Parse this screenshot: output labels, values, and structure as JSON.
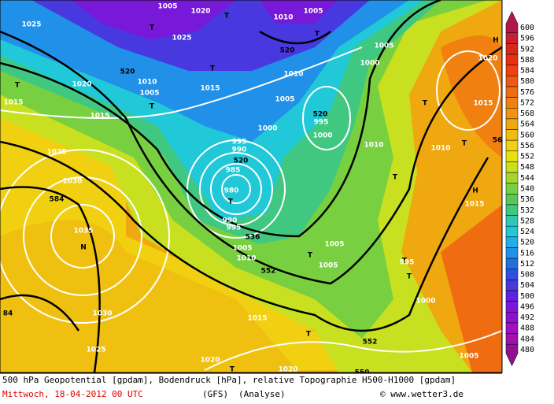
{
  "scale": {
    "labels": [
      600,
      596,
      592,
      588,
      584,
      580,
      576,
      572,
      568,
      564,
      560,
      556,
      552,
      548,
      544,
      540,
      536,
      532,
      528,
      524,
      520,
      516,
      512,
      508,
      504,
      500,
      496,
      492,
      488,
      484,
      480
    ],
    "colors": [
      "#b01848",
      "#c82030",
      "#d82818",
      "#e83010",
      "#f04010",
      "#f05818",
      "#f06c10",
      "#f08010",
      "#f09410",
      "#f0a810",
      "#f0bc10",
      "#f0d010",
      "#e8e010",
      "#c8e020",
      "#a0d830",
      "#78d040",
      "#58c858",
      "#40c880",
      "#30c8b0",
      "#20c8d8",
      "#20b0e8",
      "#2090e8",
      "#2070e0",
      "#3050e0",
      "#4838e0",
      "#6020e0",
      "#7818d8",
      "#9010d0",
      "#a010c0",
      "#a010b0",
      "#901090"
    ]
  },
  "map_labels": [
    "1005",
    "1020",
    "T",
    "1010",
    "1005",
    "1025",
    "T",
    "1025",
    "T",
    "H",
    "520",
    "1005",
    "1020",
    "520",
    "T",
    "1000",
    "1010",
    "1015",
    "1020",
    "1010",
    "1005",
    "T",
    "1015",
    "T",
    "1005",
    "520",
    "995",
    "T",
    "1015",
    "1015",
    "1000",
    "995",
    "990",
    "1000",
    "1010",
    "1010",
    "T",
    "56",
    "1025",
    "520",
    "985",
    "T",
    "1030",
    "980",
    "H",
    "1015",
    "584",
    "T",
    "990",
    "995",
    "536",
    "1005",
    "1010",
    "1035",
    "N",
    "T",
    "1005",
    "1005",
    "552",
    "T",
    "995",
    "T",
    "1000",
    "84",
    "1030",
    "1015",
    "T",
    "552",
    "1025",
    "1005",
    "1020",
    "T",
    "1020",
    "550"
  ],
  "footer": {
    "line1": "500 hPa Geopotential [gpdam], Bodendruck [hPa], relative Topographie H500-H1000 [gpdam]",
    "date": "Mittwoch, 18-04-2012  00 UTC",
    "model": "(GFS)",
    "run": "(Analyse)",
    "credit": "© www.wetter3.de"
  }
}
